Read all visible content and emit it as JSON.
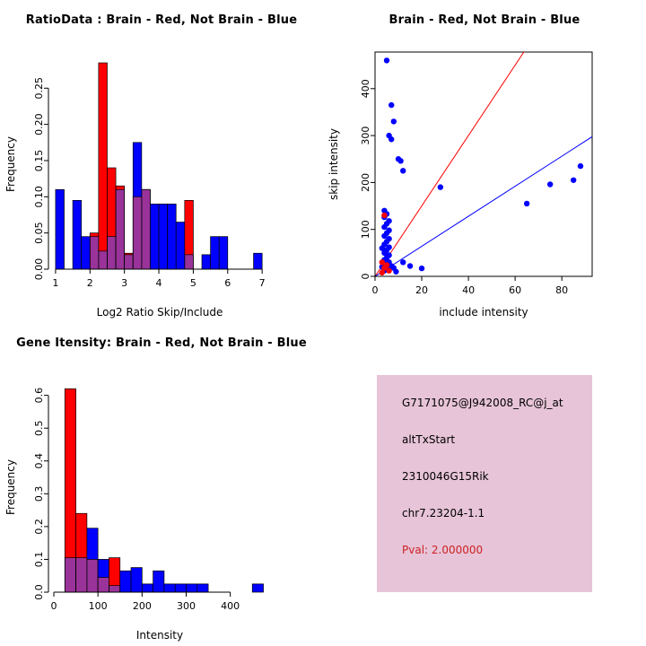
{
  "page": {
    "background": "#FFFFFF"
  },
  "chart_data": [
    {
      "id": "ratio_hist",
      "type": "bar",
      "title": "RatioData : Brain - Red, Not Brain - Blue",
      "xlabel": "Log2 Ratio Skip/Include",
      "ylabel": "Frequency",
      "xlim": [
        0.95,
        7.1
      ],
      "ylim": [
        0,
        0.29
      ],
      "grid": false,
      "xticks": {
        "values": [
          1,
          2,
          3,
          4,
          5,
          6,
          7
        ],
        "labels": [
          "1",
          "2",
          "3",
          "4",
          "5",
          "6",
          "7"
        ]
      },
      "yticks": {
        "values": [
          0,
          0.05,
          0.1,
          0.15,
          0.2,
          0.25
        ],
        "labels": [
          "0.00",
          "0.05",
          "0.10",
          "0.15",
          "0.20",
          "0.25"
        ]
      },
      "bin_width": 0.25,
      "bins": [
        1,
        1.25,
        1.5,
        1.75,
        2,
        2.25,
        2.5,
        2.75,
        3,
        3.25,
        3.5,
        3.75,
        4,
        4.25,
        4.5,
        4.75,
        5,
        5.25,
        5.5,
        5.75,
        6,
        6.25,
        6.5,
        6.75
      ],
      "series": [
        {
          "name": "Not Brain",
          "color": "#0000FF",
          "values": [
            0.11,
            0,
            0.095,
            0.045,
            0.045,
            0.025,
            0.045,
            0.11,
            0.02,
            0.175,
            0.11,
            0.09,
            0.09,
            0.09,
            0.065,
            0.02,
            0,
            0.02,
            0.045,
            0.045,
            0,
            0,
            0,
            0.022
          ]
        },
        {
          "name": "Brain",
          "color": "#FF0000",
          "values": [
            0,
            0,
            0,
            0,
            0.05,
            0.285,
            0.14,
            0.115,
            0.022,
            0.1,
            0.11,
            0,
            0,
            0,
            0,
            0.095,
            0,
            0,
            0,
            0,
            0,
            0,
            0,
            0
          ]
        }
      ],
      "overlap_color": "#993399"
    },
    {
      "id": "scatter",
      "type": "scatter",
      "title": "Brain - Red, Not Brain - Blue",
      "xlabel": "include intensity",
      "ylabel": "skip intensity",
      "xlim": [
        0,
        93
      ],
      "ylim": [
        0,
        478
      ],
      "grid": false,
      "xticks": {
        "values": [
          0,
          20,
          40,
          60,
          80
        ],
        "labels": [
          "0",
          "20",
          "40",
          "60",
          "80"
        ]
      },
      "yticks": {
        "values": [
          0,
          100,
          200,
          300,
          400
        ],
        "labels": [
          "0",
          "100",
          "200",
          "300",
          "400"
        ]
      },
      "series": [
        {
          "name": "Not Brain",
          "color": "#0000FF",
          "points": [
            [
              5,
              460
            ],
            [
              7,
              365
            ],
            [
              8,
              330
            ],
            [
              6,
              300
            ],
            [
              7,
              292
            ],
            [
              10,
              250
            ],
            [
              11,
              246
            ],
            [
              12,
              225
            ],
            [
              28,
              190
            ],
            [
              88,
              235
            ],
            [
              85,
              205
            ],
            [
              75,
              196
            ],
            [
              65,
              155
            ],
            [
              4,
              140
            ],
            [
              5,
              133
            ],
            [
              4,
              126
            ],
            [
              6,
              118
            ],
            [
              5,
              112
            ],
            [
              4,
              105
            ],
            [
              6,
              98
            ],
            [
              5,
              92
            ],
            [
              4,
              86
            ],
            [
              6,
              80
            ],
            [
              5,
              74
            ],
            [
              4,
              68
            ],
            [
              6,
              62
            ],
            [
              5,
              56
            ],
            [
              4,
              50
            ],
            [
              6,
              45
            ],
            [
              5,
              40
            ],
            [
              4,
              35
            ],
            [
              6,
              30
            ],
            [
              5,
              26
            ],
            [
              7,
              22
            ],
            [
              8,
              18
            ],
            [
              6,
              15
            ],
            [
              4,
              12
            ],
            [
              9,
              10
            ],
            [
              12,
              30
            ],
            [
              15,
              22
            ],
            [
              20,
              17
            ],
            [
              3,
              20
            ],
            [
              3,
              60
            ]
          ]
        },
        {
          "name": "Brain",
          "color": "#FF0000",
          "points": [
            [
              4,
              130
            ],
            [
              3,
              30
            ],
            [
              5,
              24
            ],
            [
              4,
              18
            ],
            [
              6,
              12
            ],
            [
              3,
              8
            ]
          ]
        }
      ],
      "lines": [
        {
          "name": "brain-fit-line",
          "color": "#FF0000",
          "slope": 7.5
        },
        {
          "name": "notbrain-fit-line",
          "color": "#0000FF",
          "slope": 3.2
        }
      ]
    },
    {
      "id": "gene_hist",
      "type": "bar",
      "title": "Gene Itensity: Brain - Red, Not Brain - Blue",
      "xlabel": "Intensity",
      "ylabel": "Frequency",
      "xlim": [
        0,
        480
      ],
      "ylim": [
        0,
        0.64
      ],
      "grid": false,
      "xticks": {
        "values": [
          0,
          100,
          200,
          300,
          400
        ],
        "labels": [
          "0",
          "100",
          "200",
          "300",
          "400"
        ]
      },
      "yticks": {
        "values": [
          0,
          0.1,
          0.2,
          0.3,
          0.4,
          0.5,
          0.6
        ],
        "labels": [
          "0.0",
          "0.1",
          "0.2",
          "0.3",
          "0.4",
          "0.5",
          "0.6"
        ]
      },
      "bin_width": 25,
      "bins": [
        0,
        25,
        50,
        75,
        100,
        125,
        150,
        175,
        200,
        225,
        250,
        275,
        300,
        325,
        350,
        375,
        400,
        425,
        450
      ],
      "series": [
        {
          "name": "Not Brain",
          "color": "#0000FF",
          "values": [
            0,
            0.105,
            0.105,
            0.195,
            0.1,
            0.02,
            0.065,
            0.075,
            0.025,
            0.065,
            0.025,
            0.025,
            0.025,
            0.025,
            0,
            0,
            0,
            0,
            0.025
          ]
        },
        {
          "name": "Brain",
          "color": "#FF0000",
          "values": [
            0,
            0.62,
            0.24,
            0.1,
            0.045,
            0.105,
            0,
            0,
            0,
            0,
            0,
            0,
            0,
            0,
            0,
            0,
            0,
            0,
            0
          ]
        }
      ],
      "overlap_color": "#993399"
    }
  ],
  "info_panel": {
    "background": "#E7C4D8",
    "probe_id": "G7171075@J942008_RC@j_at",
    "event_type": "altTxStart",
    "gene_symbol": "2310046G15Rik",
    "locus": "chr7.23204-1.1",
    "pval": "Pval: 2.000000",
    "pval_color": "#CC2222"
  }
}
